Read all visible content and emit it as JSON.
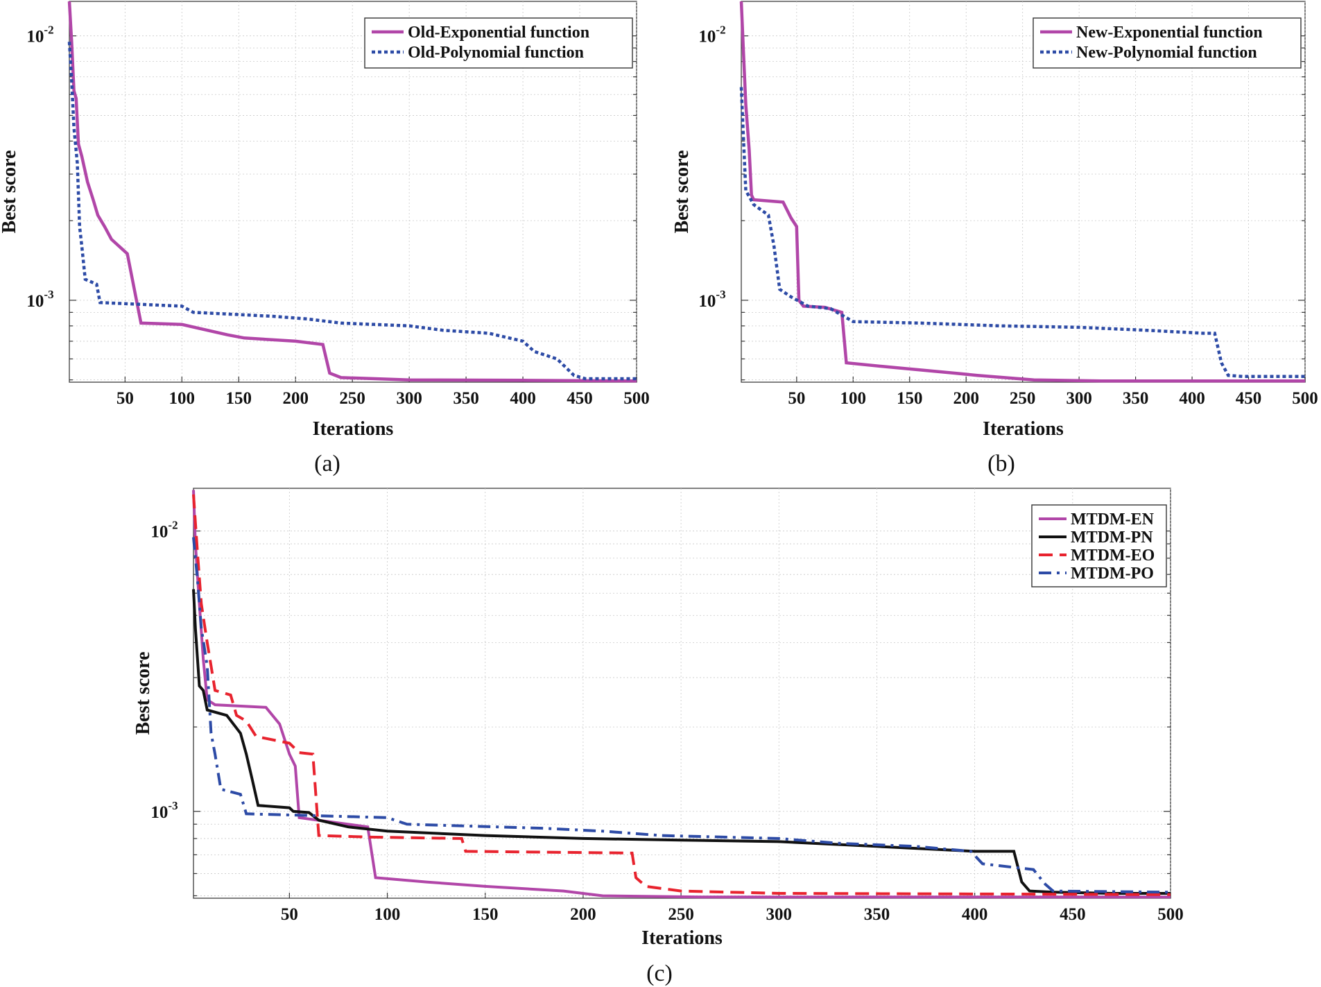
{
  "colors": {
    "exponential_new": "#b146a8",
    "polynomial": "#2d4ba6",
    "pn": "#111111",
    "eo": "#e8232e"
  },
  "chart_data": [
    {
      "id": "a",
      "type": "line",
      "caption": "(a)",
      "xlabel": "Iterations",
      "ylabel": "Best score",
      "yscale": "log",
      "xlim": [
        1,
        500
      ],
      "ylim": [
        0.00049,
        0.0135
      ],
      "xticks": [
        "50",
        "100",
        "150",
        "200",
        "250",
        "300",
        "350",
        "400",
        "450",
        "500"
      ],
      "ytick_labels": [
        {
          "base": "10",
          "exp": "-2"
        },
        {
          "base": "10",
          "exp": "-3"
        }
      ],
      "legend_position": "top-right",
      "series": [
        {
          "name": "Old-Exponential function",
          "style": "solid",
          "color": "#b146a8",
          "points": [
            [
              1,
              0.0135
            ],
            [
              3,
              0.0095
            ],
            [
              5,
              0.0062
            ],
            [
              7,
              0.0058
            ],
            [
              9,
              0.0039
            ],
            [
              12,
              0.0035
            ],
            [
              17,
              0.0028
            ],
            [
              22,
              0.0024
            ],
            [
              26,
              0.0021
            ],
            [
              32,
              0.0019
            ],
            [
              38,
              0.0017
            ],
            [
              52,
              0.0015
            ],
            [
              64,
              0.00082
            ],
            [
              100,
              0.00081
            ],
            [
              140,
              0.00074
            ],
            [
              155,
              0.00072
            ],
            [
              200,
              0.0007
            ],
            [
              224,
              0.00068
            ],
            [
              230,
              0.00053
            ],
            [
              240,
              0.00051
            ],
            [
              270,
              0.000505
            ],
            [
              300,
              0.0005
            ],
            [
              400,
              0.000498
            ],
            [
              500,
              0.000495
            ]
          ]
        },
        {
          "name": "Old-Polynomial function",
          "style": "dotted",
          "color": "#2d4ba6",
          "points": [
            [
              1,
              0.0095
            ],
            [
              3,
              0.0068
            ],
            [
              5,
              0.0045
            ],
            [
              8,
              0.0033
            ],
            [
              10,
              0.0019
            ],
            [
              12,
              0.0016
            ],
            [
              15,
              0.0012
            ],
            [
              25,
              0.00115
            ],
            [
              28,
              0.00098
            ],
            [
              100,
              0.00095
            ],
            [
              110,
              0.0009
            ],
            [
              180,
              0.00087
            ],
            [
              210,
              0.00085
            ],
            [
              240,
              0.00082
            ],
            [
              300,
              0.0008
            ],
            [
              330,
              0.00077
            ],
            [
              370,
              0.00075
            ],
            [
              400,
              0.0007
            ],
            [
              410,
              0.00064
            ],
            [
              430,
              0.0006
            ],
            [
              445,
              0.00052
            ],
            [
              455,
              0.000505
            ],
            [
              500,
              0.000505
            ]
          ]
        }
      ]
    },
    {
      "id": "b",
      "type": "line",
      "caption": "(b)",
      "xlabel": "Iterations",
      "ylabel": "Best score",
      "yscale": "log",
      "xlim": [
        1,
        500
      ],
      "ylim": [
        0.00049,
        0.0135
      ],
      "xticks": [
        "50",
        "100",
        "150",
        "200",
        "250",
        "300",
        "350",
        "400",
        "450",
        "500"
      ],
      "ytick_labels": [
        {
          "base": "10",
          "exp": "-2"
        },
        {
          "base": "10",
          "exp": "-3"
        }
      ],
      "legend_position": "top-right",
      "series": [
        {
          "name": "New-Exponential function",
          "style": "solid",
          "color": "#b146a8",
          "points": [
            [
              1,
              0.0135
            ],
            [
              3,
              0.0085
            ],
            [
              5,
              0.0055
            ],
            [
              8,
              0.0037
            ],
            [
              10,
              0.0025
            ],
            [
              12,
              0.0024
            ],
            [
              38,
              0.00235
            ],
            [
              45,
              0.00205
            ],
            [
              50,
              0.0019
            ],
            [
              52,
              0.001
            ],
            [
              56,
              0.00095
            ],
            [
              75,
              0.00094
            ],
            [
              90,
              0.0009
            ],
            [
              94,
              0.00058
            ],
            [
              130,
              0.00056
            ],
            [
              190,
              0.00053
            ],
            [
              210,
              0.00052
            ],
            [
              260,
              0.0005
            ],
            [
              320,
              0.000495
            ],
            [
              500,
              0.000495
            ]
          ]
        },
        {
          "name": "New-Polynomial function",
          "style": "dotted",
          "color": "#2d4ba6",
          "points": [
            [
              1,
              0.0064
            ],
            [
              3,
              0.004
            ],
            [
              5,
              0.0026
            ],
            [
              12,
              0.0023
            ],
            [
              25,
              0.0021
            ],
            [
              30,
              0.0016
            ],
            [
              35,
              0.0011
            ],
            [
              45,
              0.00103
            ],
            [
              60,
              0.00095
            ],
            [
              80,
              0.00093
            ],
            [
              100,
              0.00083
            ],
            [
              160,
              0.00082
            ],
            [
              230,
              0.0008
            ],
            [
              300,
              0.00079
            ],
            [
              360,
              0.00077
            ],
            [
              410,
              0.00075
            ],
            [
              420,
              0.00075
            ],
            [
              426,
              0.00058
            ],
            [
              432,
              0.00052
            ],
            [
              445,
              0.000515
            ],
            [
              500,
              0.000515
            ]
          ]
        }
      ]
    },
    {
      "id": "c",
      "type": "line",
      "caption": "(c)",
      "xlabel": "Iterations",
      "ylabel": "Best score",
      "yscale": "log",
      "xlim": [
        1,
        500
      ],
      "ylim": [
        0.00049,
        0.0142
      ],
      "xticks": [
        "50",
        "100",
        "150",
        "200",
        "250",
        "300",
        "350",
        "400",
        "450",
        "500"
      ],
      "ytick_labels": [
        {
          "base": "10",
          "exp": "-2"
        },
        {
          "base": "10",
          "exp": "-3"
        }
      ],
      "legend_position": "top-right",
      "series": [
        {
          "name": "MTDM-EN",
          "style": "solid",
          "color": "#b146a8",
          "points": [
            [
              1,
              0.014
            ],
            [
              2,
              0.009
            ],
            [
              4,
              0.0055
            ],
            [
              6,
              0.0035
            ],
            [
              8,
              0.0025
            ],
            [
              12,
              0.0024
            ],
            [
              38,
              0.00235
            ],
            [
              45,
              0.00205
            ],
            [
              50,
              0.0016
            ],
            [
              53,
              0.00145
            ],
            [
              55,
              0.00095
            ],
            [
              90,
              0.00088
            ],
            [
              94,
              0.00058
            ],
            [
              120,
              0.00056
            ],
            [
              150,
              0.00054
            ],
            [
              190,
              0.00052
            ],
            [
              210,
              0.0005
            ],
            [
              260,
              0.000495
            ],
            [
              500,
              0.000495
            ]
          ]
        },
        {
          "name": "MTDM-PN",
          "style": "solid",
          "color": "#111111",
          "points": [
            [
              1,
              0.0062
            ],
            [
              2,
              0.0045
            ],
            [
              4,
              0.0028
            ],
            [
              6,
              0.0027
            ],
            [
              8,
              0.0023
            ],
            [
              18,
              0.0022
            ],
            [
              25,
              0.0019
            ],
            [
              28,
              0.0016
            ],
            [
              31,
              0.0013
            ],
            [
              34,
              0.00105
            ],
            [
              50,
              0.00103
            ],
            [
              52,
              0.001
            ],
            [
              60,
              0.00099
            ],
            [
              65,
              0.00093
            ],
            [
              80,
              0.00088
            ],
            [
              100,
              0.00085
            ],
            [
              150,
              0.00082
            ],
            [
              200,
              0.0008
            ],
            [
              250,
              0.00079
            ],
            [
              300,
              0.00078
            ],
            [
              350,
              0.00075
            ],
            [
              400,
              0.00072
            ],
            [
              420,
              0.00072
            ],
            [
              424,
              0.00056
            ],
            [
              428,
              0.00052
            ],
            [
              440,
              0.000515
            ],
            [
              470,
              0.00051
            ],
            [
              500,
              0.00051
            ]
          ]
        },
        {
          "name": "MTDM-EO",
          "style": "dashed",
          "color": "#e8232e",
          "points": [
            [
              1,
              0.0135
            ],
            [
              3,
              0.0085
            ],
            [
              5,
              0.0055
            ],
            [
              8,
              0.004
            ],
            [
              10,
              0.0033
            ],
            [
              12,
              0.0027
            ],
            [
              20,
              0.0026
            ],
            [
              23,
              0.0022
            ],
            [
              28,
              0.0021
            ],
            [
              33,
              0.00185
            ],
            [
              50,
              0.00175
            ],
            [
              55,
              0.00162
            ],
            [
              62,
              0.0016
            ],
            [
              65,
              0.00082
            ],
            [
              90,
              0.00081
            ],
            [
              138,
              0.0008
            ],
            [
              140,
              0.00072
            ],
            [
              225,
              0.00071
            ],
            [
              227,
              0.00058
            ],
            [
              232,
              0.00054
            ],
            [
              250,
              0.00052
            ],
            [
              300,
              0.00051
            ],
            [
              500,
              0.000505
            ]
          ]
        },
        {
          "name": "MTDM-PO",
          "style": "dashdot",
          "color": "#2d4ba6",
          "points": [
            [
              1,
              0.0095
            ],
            [
              3,
              0.0068
            ],
            [
              5,
              0.0045
            ],
            [
              8,
              0.0033
            ],
            [
              10,
              0.0019
            ],
            [
              12,
              0.0016
            ],
            [
              15,
              0.0012
            ],
            [
              25,
              0.00115
            ],
            [
              28,
              0.00098
            ],
            [
              100,
              0.00095
            ],
            [
              110,
              0.0009
            ],
            [
              180,
              0.00087
            ],
            [
              210,
              0.00085
            ],
            [
              240,
              0.00082
            ],
            [
              300,
              0.0008
            ],
            [
              330,
              0.00077
            ],
            [
              370,
              0.00075
            ],
            [
              398,
              0.00072
            ],
            [
              404,
              0.00065
            ],
            [
              430,
              0.00062
            ],
            [
              436,
              0.00055
            ],
            [
              440,
              0.00052
            ],
            [
              500,
              0.000515
            ]
          ]
        }
      ]
    }
  ]
}
